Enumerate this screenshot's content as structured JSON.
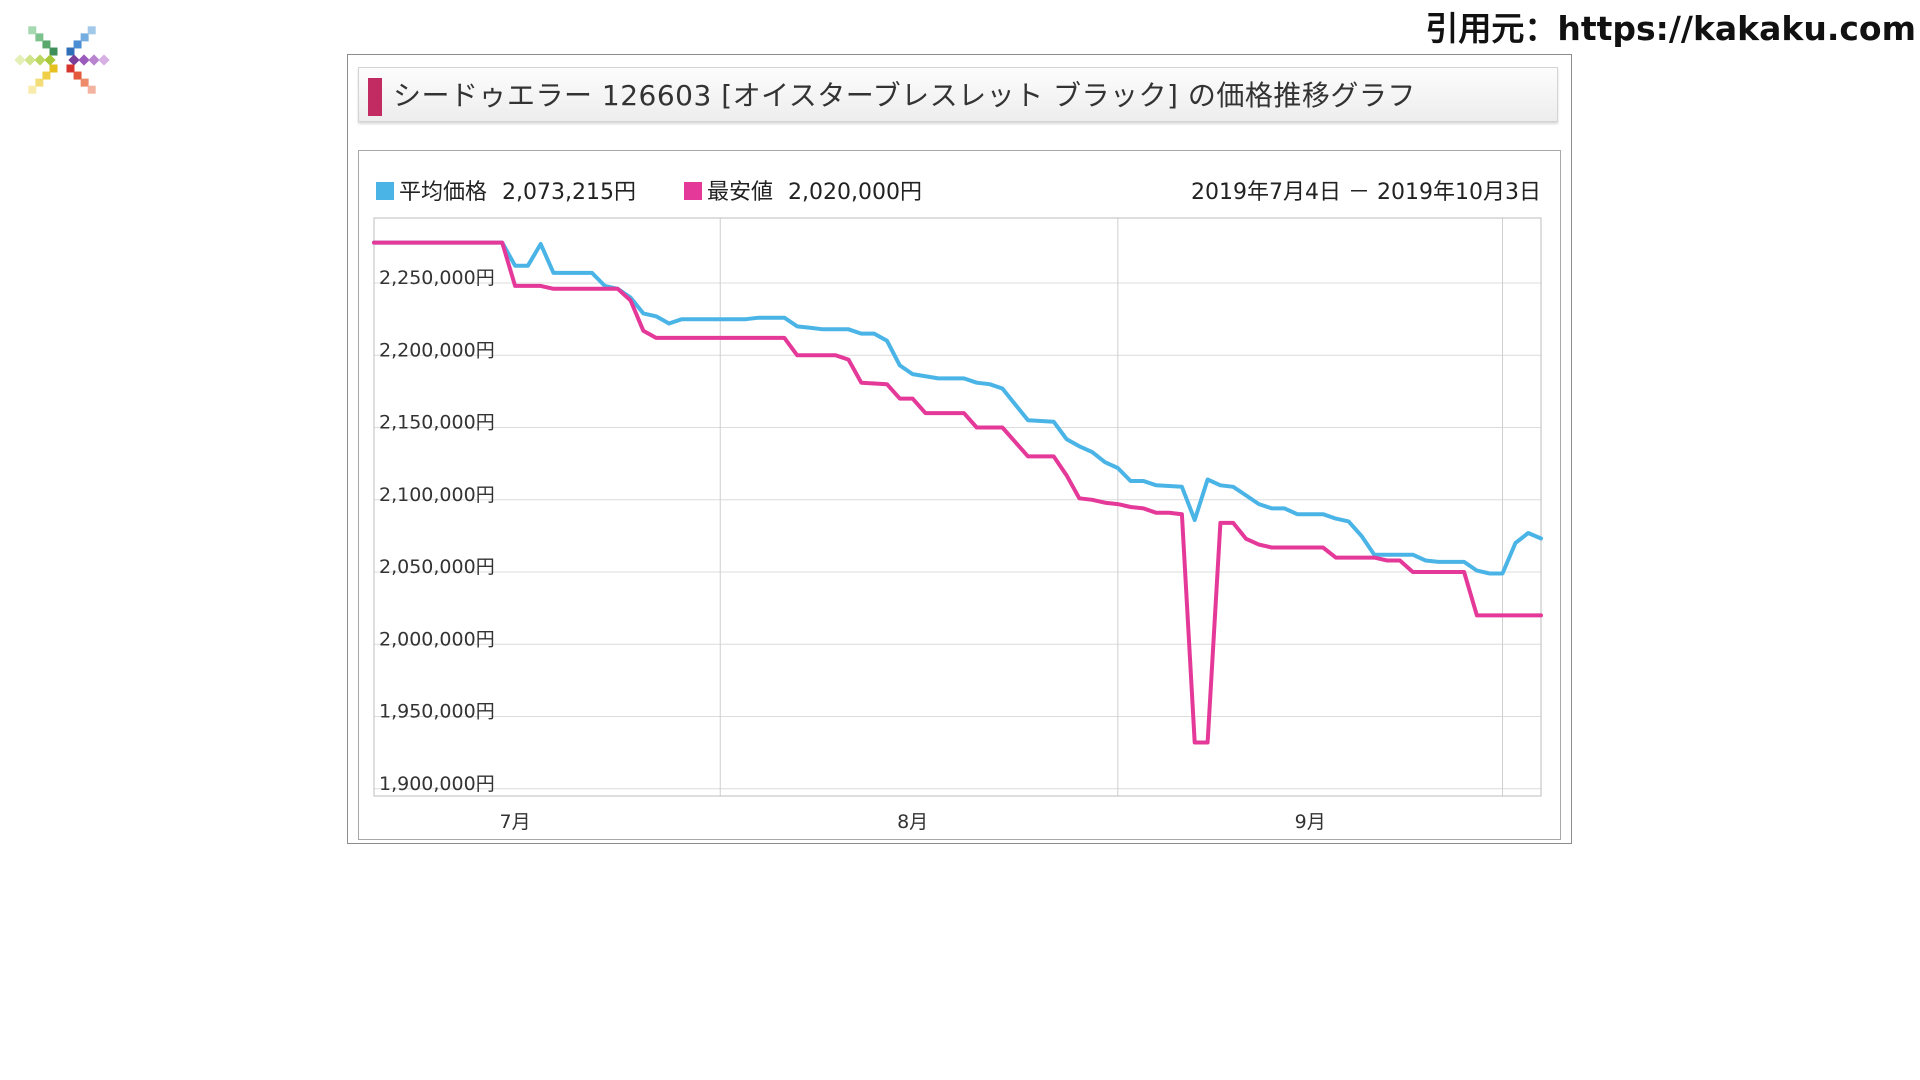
{
  "source_label": "引用元：https://kakaku.com",
  "logo": {
    "icon": "color-burst-logo-icon"
  },
  "panel": {
    "title": "シードゥエラー 126603 [オイスターブレスレット ブラック] の価格推移グラフ",
    "title_mark_color": "#c22a62"
  },
  "legend": {
    "avg_label": "平均価格",
    "avg_value": "2,073,215円",
    "min_label": "最安値",
    "min_value": "2,020,000円",
    "date_range": "2019年7月4日 － 2019年10月3日"
  },
  "chart_data": {
    "type": "line",
    "title": "シードゥエラー 126603 [オイスターブレスレット ブラック] の価格推移グラフ",
    "ylim": [
      1895000,
      2295000
    ],
    "yticks": [
      {
        "value": 2250000,
        "label": "2,250,000円"
      },
      {
        "value": 2200000,
        "label": "2,200,000円"
      },
      {
        "value": 2150000,
        "label": "2,150,000円"
      },
      {
        "value": 2100000,
        "label": "2,100,000円"
      },
      {
        "value": 2050000,
        "label": "2,050,000円"
      },
      {
        "value": 2000000,
        "label": "2,000,000円"
      },
      {
        "value": 1950000,
        "label": "1,950,000円"
      },
      {
        "value": 1900000,
        "label": "1,900,000円"
      }
    ],
    "xlim": [
      "2019-07-04",
      "2019-10-03"
    ],
    "xticks": [
      {
        "date": "2019-07-15",
        "label": "7月"
      },
      {
        "date": "2019-08-15",
        "label": "8月"
      },
      {
        "date": "2019-09-15",
        "label": "9月"
      }
    ],
    "vgrid": [
      "2019-07-31",
      "2019-08-31",
      "2019-09-30"
    ],
    "grid": true,
    "legend_position": "top-left",
    "series": [
      {
        "name": "平均価格",
        "color": "#4ab4e6",
        "points": [
          [
            "2019-07-04",
            2278000
          ],
          [
            "2019-07-14",
            2278000
          ],
          [
            "2019-07-15",
            2262000
          ],
          [
            "2019-07-16",
            2262000
          ],
          [
            "2019-07-17",
            2277000
          ],
          [
            "2019-07-18",
            2257000
          ],
          [
            "2019-07-21",
            2257000
          ],
          [
            "2019-07-22",
            2248000
          ],
          [
            "2019-07-23",
            2246000
          ],
          [
            "2019-07-24",
            2240000
          ],
          [
            "2019-07-25",
            2229000
          ],
          [
            "2019-07-26",
            2227000
          ],
          [
            "2019-07-27",
            2222000
          ],
          [
            "2019-07-28",
            2225000
          ],
          [
            "2019-08-02",
            2225000
          ],
          [
            "2019-08-03",
            2226000
          ],
          [
            "2019-08-05",
            2226000
          ],
          [
            "2019-08-06",
            2220000
          ],
          [
            "2019-08-07",
            2219000
          ],
          [
            "2019-08-08",
            2218000
          ],
          [
            "2019-08-10",
            2218000
          ],
          [
            "2019-08-11",
            2215000
          ],
          [
            "2019-08-12",
            2215000
          ],
          [
            "2019-08-13",
            2210000
          ],
          [
            "2019-08-14",
            2193000
          ],
          [
            "2019-08-15",
            2187000
          ],
          [
            "2019-08-17",
            2184000
          ],
          [
            "2019-08-19",
            2184000
          ],
          [
            "2019-08-20",
            2181000
          ],
          [
            "2019-08-21",
            2180000
          ],
          [
            "2019-08-22",
            2177000
          ],
          [
            "2019-08-24",
            2155000
          ],
          [
            "2019-08-26",
            2154000
          ],
          [
            "2019-08-27",
            2142000
          ],
          [
            "2019-08-28",
            2137000
          ],
          [
            "2019-08-29",
            2133000
          ],
          [
            "2019-08-30",
            2126000
          ],
          [
            "2019-08-31",
            2122000
          ],
          [
            "2019-09-01",
            2113000
          ],
          [
            "2019-09-02",
            2113000
          ],
          [
            "2019-09-03",
            2110000
          ],
          [
            "2019-09-05",
            2109000
          ],
          [
            "2019-09-06",
            2086000
          ],
          [
            "2019-09-07",
            2114000
          ],
          [
            "2019-09-08",
            2110000
          ],
          [
            "2019-09-09",
            2109000
          ],
          [
            "2019-09-10",
            2103000
          ],
          [
            "2019-09-11",
            2097000
          ],
          [
            "2019-09-12",
            2094000
          ],
          [
            "2019-09-13",
            2094000
          ],
          [
            "2019-09-14",
            2090000
          ],
          [
            "2019-09-16",
            2090000
          ],
          [
            "2019-09-17",
            2087000
          ],
          [
            "2019-09-18",
            2085000
          ],
          [
            "2019-09-19",
            2075000
          ],
          [
            "2019-09-20",
            2062000
          ],
          [
            "2019-09-23",
            2062000
          ],
          [
            "2019-09-24",
            2058000
          ],
          [
            "2019-09-25",
            2057000
          ],
          [
            "2019-09-27",
            2057000
          ],
          [
            "2019-09-28",
            2051000
          ],
          [
            "2019-09-29",
            2049000
          ],
          [
            "2019-09-30",
            2049000
          ],
          [
            "2019-10-01",
            2070000
          ],
          [
            "2019-10-02",
            2077000
          ],
          [
            "2019-10-03",
            2073215
          ]
        ]
      },
      {
        "name": "最安値",
        "color": "#e5399a",
        "points": [
          [
            "2019-07-04",
            2278000
          ],
          [
            "2019-07-14",
            2278000
          ],
          [
            "2019-07-15",
            2248000
          ],
          [
            "2019-07-17",
            2248000
          ],
          [
            "2019-07-18",
            2246000
          ],
          [
            "2019-07-23",
            2246000
          ],
          [
            "2019-07-24",
            2238000
          ],
          [
            "2019-07-25",
            2217000
          ],
          [
            "2019-07-26",
            2212000
          ],
          [
            "2019-08-05",
            2212000
          ],
          [
            "2019-08-06",
            2200000
          ],
          [
            "2019-08-09",
            2200000
          ],
          [
            "2019-08-10",
            2197000
          ],
          [
            "2019-08-11",
            2181000
          ],
          [
            "2019-08-13",
            2180000
          ],
          [
            "2019-08-14",
            2170000
          ],
          [
            "2019-08-15",
            2170000
          ],
          [
            "2019-08-16",
            2160000
          ],
          [
            "2019-08-19",
            2160000
          ],
          [
            "2019-08-20",
            2150000
          ],
          [
            "2019-08-22",
            2150000
          ],
          [
            "2019-08-24",
            2130000
          ],
          [
            "2019-08-26",
            2130000
          ],
          [
            "2019-08-27",
            2117000
          ],
          [
            "2019-08-28",
            2101000
          ],
          [
            "2019-08-29",
            2100000
          ],
          [
            "2019-08-30",
            2098000
          ],
          [
            "2019-08-31",
            2097000
          ],
          [
            "2019-09-01",
            2095000
          ],
          [
            "2019-09-02",
            2094000
          ],
          [
            "2019-09-03",
            2091000
          ],
          [
            "2019-09-04",
            2091000
          ],
          [
            "2019-09-05",
            2090000
          ],
          [
            "2019-09-06",
            1932000
          ],
          [
            "2019-09-07",
            1932000
          ],
          [
            "2019-09-08",
            2084000
          ],
          [
            "2019-09-09",
            2084000
          ],
          [
            "2019-09-10",
            2073000
          ],
          [
            "2019-09-11",
            2069000
          ],
          [
            "2019-09-12",
            2067000
          ],
          [
            "2019-09-16",
            2067000
          ],
          [
            "2019-09-17",
            2060000
          ],
          [
            "2019-09-20",
            2060000
          ],
          [
            "2019-09-21",
            2058000
          ],
          [
            "2019-09-22",
            2058000
          ],
          [
            "2019-09-23",
            2050000
          ],
          [
            "2019-09-27",
            2050000
          ],
          [
            "2019-09-28",
            2020000
          ],
          [
            "2019-10-03",
            2020000
          ]
        ]
      }
    ]
  }
}
